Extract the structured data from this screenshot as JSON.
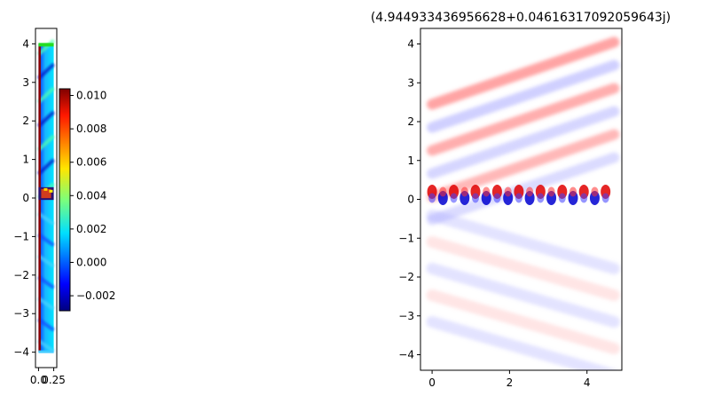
{
  "chart_data": [
    {
      "type": "heatmap",
      "title": "",
      "xlabel": "",
      "ylabel": "",
      "xlim": [
        -0.05,
        0.3
      ],
      "ylim": [
        -4.4,
        4.4
      ],
      "x_ticks": [
        0.0,
        0.25
      ],
      "x_tick_labels": [
        "0.0",
        "0.25"
      ],
      "y_ticks": [
        -4,
        -3,
        -2,
        -1,
        0,
        1,
        2,
        3,
        4
      ],
      "y_tick_labels": [
        "−4",
        "−3",
        "−2",
        "−1",
        "0",
        "1",
        "2",
        "3",
        "4"
      ],
      "colormap": "jet",
      "domain_extent": {
        "x": [
          0,
          0.25
        ],
        "y": [
          -4,
          4
        ]
      },
      "pml_boundaries": [
        {
          "name": "left wall",
          "color": "#8b0000"
        },
        {
          "name": "top boundary",
          "color": "#22dd22"
        },
        {
          "name": "bottom boundary",
          "color": "#44ccff"
        }
      ],
      "source_region": {
        "y": [
          -0.05,
          0.28
        ],
        "color": "#d23c1e"
      },
      "colorbar": {
        "range": [
          -0.0029,
          0.0104
        ],
        "ticks": [
          -0.002,
          0.0,
          0.002,
          0.004,
          0.006,
          0.008,
          0.01
        ],
        "tick_labels": [
          "−0.002",
          "0.000",
          "0.002",
          "0.004",
          "0.006",
          "0.008",
          "0.010"
        ]
      }
    },
    {
      "type": "heatmap",
      "title": "(4.944933436956628+0.04616317092059643j)",
      "xlabel": "",
      "ylabel": "",
      "xlim": [
        -0.3,
        4.9
      ],
      "ylim": [
        -4.4,
        4.4
      ],
      "x_ticks": [
        0,
        2,
        4
      ],
      "x_tick_labels": [
        "0",
        "2",
        "4"
      ],
      "y_ticks": [
        -4,
        -3,
        -2,
        -1,
        0,
        1,
        2,
        3,
        4
      ],
      "y_tick_labels": [
        "−4",
        "−3",
        "−2",
        "−1",
        "0",
        "1",
        "2",
        "3",
        "4"
      ],
      "colormap": "bwr",
      "domain_extent": {
        "x": [
          0,
          4.7
        ],
        "y": [
          -4,
          4
        ]
      },
      "field": {
        "surface_wave": {
          "y": 0.15,
          "spots": 17,
          "x_spacing": 0.28
        },
        "upper_oblique_bands": 6,
        "lower_oblique_bands": 5
      }
    }
  ]
}
